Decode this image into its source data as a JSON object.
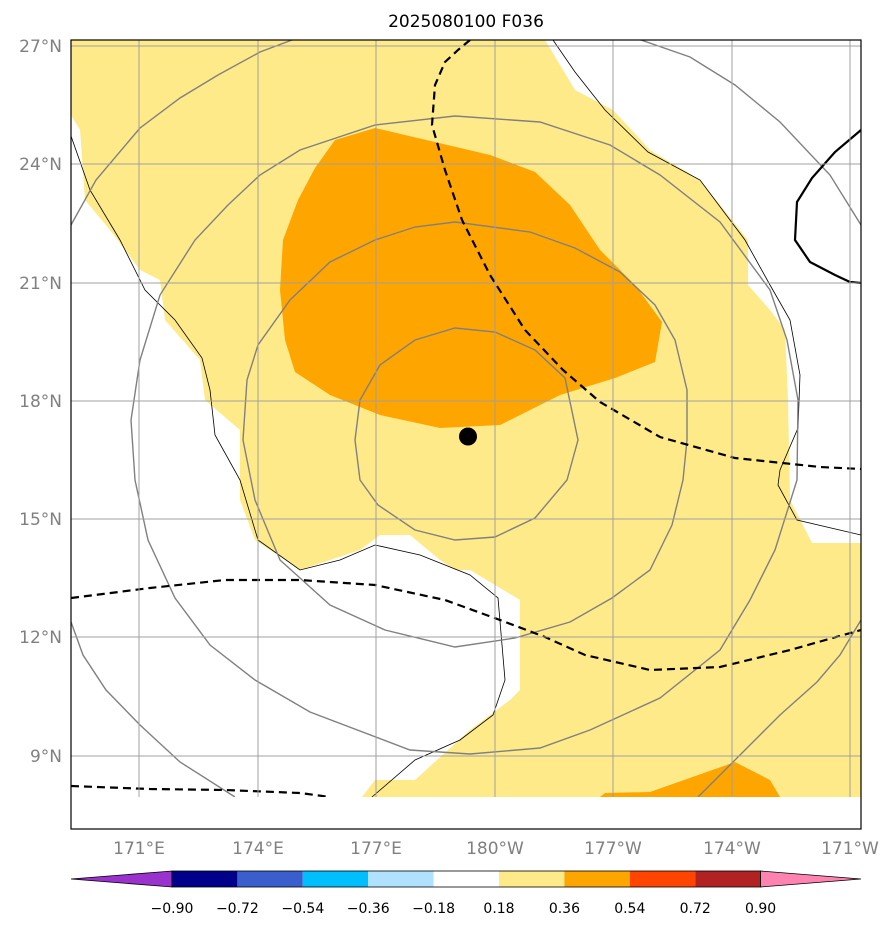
{
  "title": "2025080100 F036",
  "map": {
    "lat_ticks": [
      "27°N",
      "24°N",
      "21°N",
      "18°N",
      "15°N",
      "12°N",
      "9°N"
    ],
    "lon_ticks": [
      "171°E",
      "174°E",
      "177°E",
      "180°W",
      "177°W",
      "174°W",
      "171°W"
    ],
    "lat_range_deg": [
      7.2,
      27.1
    ],
    "lon_range_deg_east": [
      169.3,
      189.2
    ],
    "gridlines": true,
    "storm_center": {
      "lat": 17.1,
      "lon_east": 179.3
    },
    "colors": {
      "fill_018_036": "#ffea8a",
      "fill_036_054": "#ffa500",
      "coast": "#000000",
      "grid": "#a0a0a0",
      "contour": "#808080"
    }
  },
  "colorbar": {
    "levels": [
      "−0.90",
      "−0.72",
      "−0.54",
      "−0.36",
      "−0.18",
      "0.18",
      "0.36",
      "0.54",
      "0.72",
      "0.90"
    ],
    "colors": [
      "#9a32cd",
      "#00008b",
      "#3a5fcd",
      "#00bfff",
      "#b0e2ff",
      "#ffffff",
      "#ffea8a",
      "#ffa500",
      "#ff4500",
      "#b22222",
      "#ff83b0"
    ]
  }
}
